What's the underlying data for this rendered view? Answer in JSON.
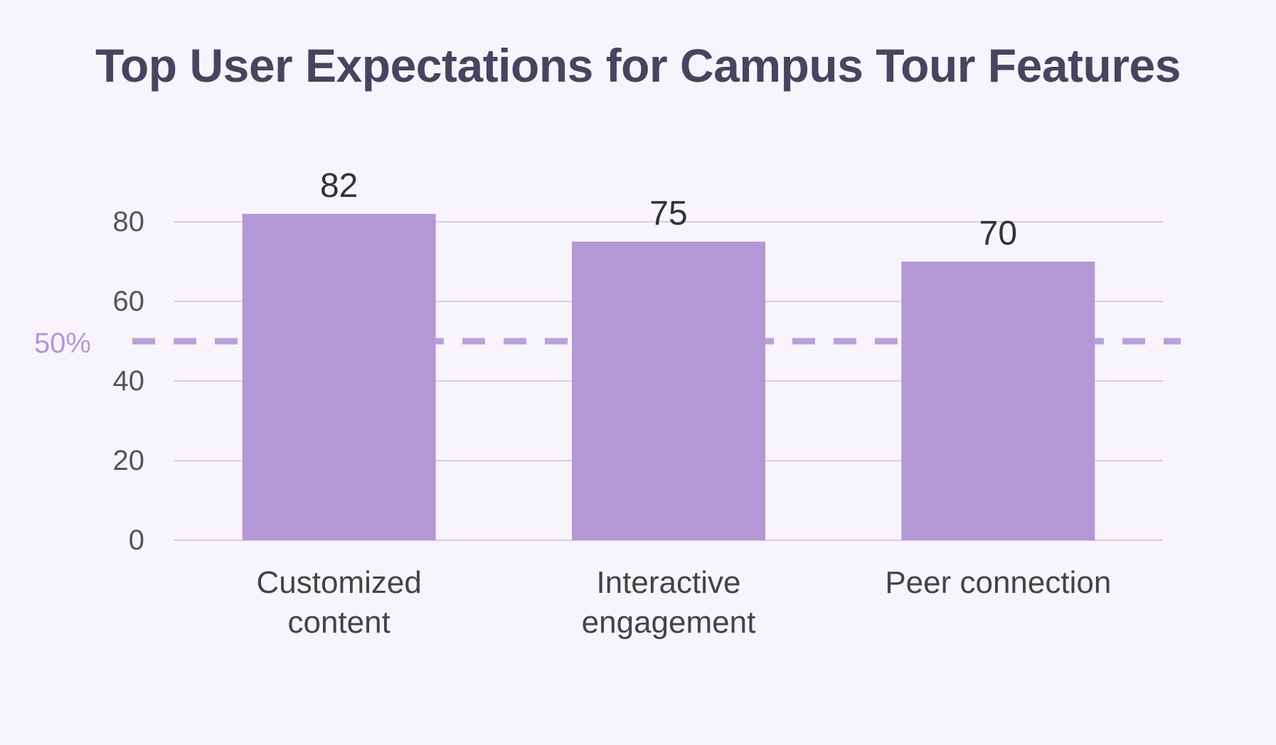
{
  "chart_data": {
    "type": "bar",
    "title": "Top User Expectations for Campus Tour Features",
    "xlabel": "",
    "ylabel": "",
    "categories": [
      "Customized content",
      "Interactive engagement",
      "Peer connection"
    ],
    "category_lines": [
      [
        "Customized",
        "content"
      ],
      [
        "Interactive",
        "engagement"
      ],
      [
        "Peer connection"
      ]
    ],
    "values": [
      82,
      75,
      70
    ],
    "data_labels": [
      "82",
      "75",
      "70"
    ],
    "ylim": [
      0,
      80
    ],
    "yticks": [
      0,
      20,
      40,
      60,
      80
    ],
    "ytick_labels": [
      "0",
      "20",
      "40",
      "60",
      "80"
    ],
    "grid": true,
    "legend": "none",
    "reference_line": {
      "value": 50,
      "label": "50%",
      "style": "dashed"
    },
    "colors": {
      "bar": "#b497d6",
      "reference": "#b497d6",
      "grid": "#dcc9e8",
      "title": "#4a4360",
      "tick": "#555555",
      "background": "#f8f4fb"
    }
  }
}
